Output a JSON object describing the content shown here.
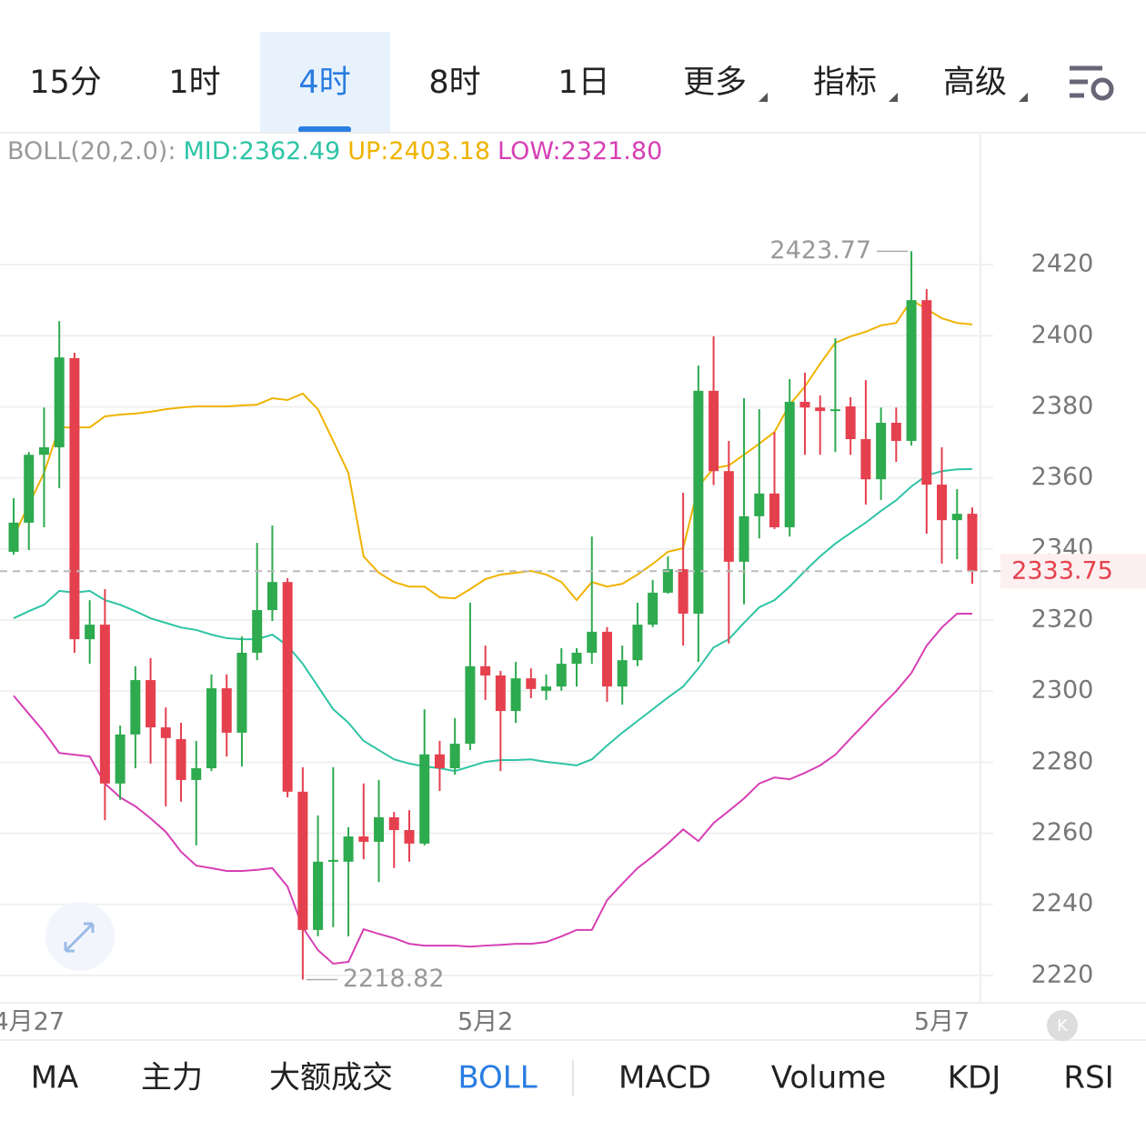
{
  "tabs": [
    "15分",
    "1时",
    "4时",
    "8时",
    "1日",
    "更多",
    "指标",
    "高级"
  ],
  "indicator_tabs": [
    "MA",
    "主力",
    "大额成交",
    "BOLL",
    "MACD",
    "Volume",
    "KDJ",
    "RSI"
  ],
  "chart_data": {
    "type": "candlestick",
    "legend": [
      "BOLL(20,2.0):",
      "MID:2362.49",
      "UP:2403.18",
      "LOW:2321.80"
    ],
    "categories": [
      null,
      "4月27",
      null,
      null,
      null,
      null,
      null,
      null,
      null,
      null,
      null,
      null,
      null,
      null,
      null,
      null,
      null,
      null,
      null,
      null,
      null,
      null,
      null,
      null,
      null,
      null,
      null,
      null,
      null,
      null,
      null,
      "5月2",
      null,
      null,
      null,
      null,
      null,
      null,
      null,
      null,
      null,
      null,
      null,
      null,
      null,
      null,
      null,
      null,
      null,
      null,
      null,
      null,
      null,
      null,
      null,
      null,
      null,
      null,
      null,
      null,
      null,
      "5月7",
      null,
      null
    ],
    "open": [
      2339.2,
      2347.4,
      2366.5,
      2368.6,
      2393.7,
      2314.6,
      2318.7,
      2274.0,
      2287.8,
      2303.1,
      2289.8,
      2286.5,
      2275.0,
      2278.3,
      2300.8,
      2288.3,
      2310.8,
      2322.8,
      2330.7,
      2271.7,
      2232.8,
      2252.0,
      2252.0,
      2259.1,
      2257.6,
      2264.5,
      2260.9,
      2257.1,
      2282.2,
      2278.3,
      2285.2,
      2307.0,
      2304.4,
      2294.4,
      2303.6,
      2300.1,
      2301.3,
      2307.7,
      2310.8,
      2316.7,
      2301.3,
      2308.7,
      2318.7,
      2327.7,
      2334.3,
      2321.8,
      2384.5,
      2361.9,
      2336.4,
      2349.2,
      2355.6,
      2346.1,
      2381.4,
      2379.8,
      2378.8,
      2380.1,
      2370.9,
      2359.6,
      2375.5,
      2370.4,
      2410.0,
      2358.1,
      2348.1,
      2349.9
    ],
    "high": [
      2354.3,
      2367.3,
      2379.8,
      2404.1,
      2395.2,
      2325.6,
      2328.7,
      2290.3,
      2307.0,
      2309.3,
      2295.4,
      2291.1,
      2286.0,
      2304.7,
      2304.7,
      2315.4,
      2341.7,
      2346.6,
      2331.8,
      2278.6,
      2265.0,
      2278.6,
      2261.7,
      2274.0,
      2275.0,
      2266.0,
      2266.5,
      2294.9,
      2286.0,
      2292.4,
      2324.9,
      2312.8,
      2305.7,
      2308.2,
      2306.4,
      2304.7,
      2312.1,
      2312.1,
      2343.5,
      2318.0,
      2312.8,
      2324.9,
      2331.3,
      2337.9,
      2355.8,
      2391.6,
      2399.8,
      2370.4,
      2382.4,
      2379.3,
      2372.9,
      2387.8,
      2389.6,
      2383.2,
      2399.3,
      2382.7,
      2387.5,
      2379.8,
      2379.8,
      2423.77,
      2413.1,
      2368.6,
      2356.8,
      2351.7
    ],
    "low": [
      2338.4,
      2339.7,
      2346.1,
      2357.1,
      2310.8,
      2307.7,
      2263.7,
      2269.4,
      2278.3,
      2279.6,
      2267.6,
      2268.9,
      2256.6,
      2277.5,
      2281.6,
      2278.8,
      2308.7,
      2319.7,
      2270.1,
      2218.82,
      2231.0,
      2233.6,
      2231.0,
      2252.7,
      2246.3,
      2250.2,
      2252.0,
      2256.6,
      2271.9,
      2276.5,
      2283.4,
      2297.5,
      2277.5,
      2291.1,
      2298.0,
      2297.5,
      2300.1,
      2301.3,
      2307.7,
      2297.0,
      2296.2,
      2307.0,
      2318.0,
      2327.4,
      2312.8,
      2308.2,
      2358.0,
      2313.4,
      2324.4,
      2343.0,
      2345.6,
      2343.5,
      2366.5,
      2366.5,
      2367.3,
      2366.5,
      2352.5,
      2353.8,
      2364.5,
      2369.1,
      2344.3,
      2335.9,
      2337.1,
      2330.2
    ],
    "close": [
      2347.4,
      2366.5,
      2368.6,
      2393.9,
      2314.6,
      2318.7,
      2274.0,
      2287.8,
      2303.1,
      2289.8,
      2286.8,
      2275.0,
      2278.3,
      2300.8,
      2288.3,
      2310.8,
      2322.8,
      2330.7,
      2271.7,
      2232.8,
      2252.0,
      2252.5,
      2259.1,
      2257.6,
      2264.5,
      2260.9,
      2257.1,
      2282.2,
      2278.3,
      2285.2,
      2307.0,
      2304.4,
      2294.4,
      2303.6,
      2300.6,
      2301.3,
      2307.7,
      2310.8,
      2316.7,
      2301.3,
      2308.7,
      2318.7,
      2327.7,
      2334.3,
      2321.8,
      2384.5,
      2361.9,
      2336.4,
      2349.2,
      2355.6,
      2346.1,
      2381.4,
      2379.8,
      2378.8,
      2379.3,
      2370.9,
      2359.6,
      2375.5,
      2370.4,
      2410.0,
      2358.1,
      2348.1,
      2349.9,
      2333.75
    ],
    "up_color": "#2eaa4f",
    "down_color": "#e5404e",
    "series": [
      {
        "color": "#2ec4a5",
        "values": [
          2320.5,
          2322.5,
          2324.3,
          2328.2,
          2327.7,
          2328.2,
          2325.6,
          2324.3,
          2322.5,
          2320.5,
          2319.2,
          2317.9,
          2317.2,
          2315.9,
          2314.9,
          2314.6,
          2314.6,
          2315.9,
          2312.8,
          2307.7,
          2301.3,
          2294.9,
          2291.1,
          2286.0,
          2283.4,
          2280.8,
          2279.6,
          2278.8,
          2278.3,
          2277.5,
          2278.8,
          2280.1,
          2280.6,
          2280.6,
          2280.8,
          2280.1,
          2279.6,
          2279.1,
          2280.8,
          2284.7,
          2288.3,
          2291.6,
          2294.9,
          2298.2,
          2301.3,
          2306.4,
          2312.3,
          2314.6,
          2319.2,
          2323.6,
          2325.6,
          2329.4,
          2333.8,
          2337.9,
          2341.5,
          2344.5,
          2347.4,
          2350.7,
          2353.7,
          2357.6,
          2360.7,
          2361.9,
          2362.4,
          2362.49
        ]
      },
      {
        "color": "#efb300",
        "values": [
          2343.5,
          2352.5,
          2361.4,
          2374.2,
          2374.2,
          2374.2,
          2377.3,
          2377.8,
          2378.1,
          2378.6,
          2379.3,
          2379.8,
          2380.1,
          2380.1,
          2380.1,
          2380.4,
          2380.6,
          2382.4,
          2381.9,
          2383.7,
          2379.3,
          2370.4,
          2361.4,
          2337.9,
          2333.3,
          2330.7,
          2329.4,
          2329.4,
          2326.4,
          2326.1,
          2328.7,
          2331.5,
          2332.8,
          2333.3,
          2333.8,
          2332.8,
          2330.7,
          2325.6,
          2330.7,
          2329.4,
          2330.2,
          2332.8,
          2335.8,
          2339.2,
          2340.2,
          2357.6,
          2362.7,
          2363.5,
          2366.5,
          2369.6,
          2372.9,
          2380.6,
          2385.7,
          2392.1,
          2398.0,
          2399.8,
          2401.1,
          2402.9,
          2403.6,
          2410.0,
          2407.5,
          2404.9,
          2403.6,
          2403.18
        ]
      },
      {
        "color": "#d63fb4",
        "values": [
          2298.7,
          2293.6,
          2288.5,
          2282.6,
          2282.1,
          2281.6,
          2274.0,
          2270.1,
          2267.6,
          2264.2,
          2260.4,
          2254.8,
          2250.9,
          2250.2,
          2249.4,
          2249.4,
          2249.7,
          2250.2,
          2245.0,
          2233.5,
          2227.1,
          2223.3,
          2223.8,
          2233.0,
          2231.7,
          2230.5,
          2228.9,
          2228.4,
          2228.4,
          2228.4,
          2228.1,
          2228.4,
          2228.6,
          2228.9,
          2228.9,
          2229.4,
          2231.0,
          2232.8,
          2232.8,
          2241.2,
          2245.8,
          2250.2,
          2253.5,
          2257.1,
          2261.1,
          2257.8,
          2262.9,
          2266.3,
          2269.8,
          2274.0,
          2275.7,
          2275.2,
          2277.0,
          2279.1,
          2282.1,
          2286.7,
          2291.1,
          2295.7,
          2300.0,
          2305.1,
          2312.8,
          2317.9,
          2321.8,
          2321.8
        ]
      }
    ],
    "legend_colors": [
      "#999999",
      "#2ec4a5",
      "#efb300",
      "#d63fb4"
    ],
    "high_marker": 2423.77,
    "low_marker": 2218.82,
    "last_price": 2333.75,
    "ylim": [
      2212.3,
      2456.6
    ],
    "yticks": [
      2220,
      2240,
      2260,
      2280,
      2300,
      2320,
      2340,
      2360,
      2380,
      2400,
      2420
    ],
    "grid": true
  }
}
